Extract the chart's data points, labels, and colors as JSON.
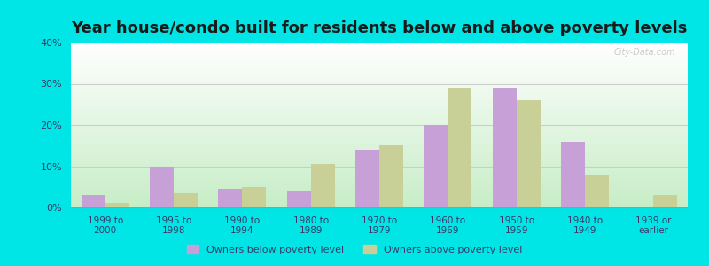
{
  "title": "Year house/condo built for residents below and above poverty levels",
  "categories": [
    "1999 to\n2000",
    "1995 to\n1998",
    "1990 to\n1994",
    "1980 to\n1989",
    "1970 to\n1979",
    "1960 to\n1969",
    "1950 to\n1959",
    "1940 to\n1949",
    "1939 or\nearlier"
  ],
  "below_poverty": [
    3.0,
    10.0,
    4.5,
    4.0,
    14.0,
    20.0,
    29.0,
    16.0,
    0.0
  ],
  "above_poverty": [
    1.0,
    3.5,
    5.0,
    10.5,
    15.0,
    29.0,
    26.0,
    8.0,
    3.0
  ],
  "below_color": "#c8a0d8",
  "above_color": "#c8d098",
  "ylim": [
    0,
    40
  ],
  "yticks": [
    0,
    10,
    20,
    30,
    40
  ],
  "ytick_labels": [
    "0%",
    "10%",
    "20%",
    "30%",
    "40%"
  ],
  "outer_bg": "#00e5e5",
  "legend_below_label": "Owners below poverty level",
  "legend_above_label": "Owners above poverty level",
  "title_fontsize": 13,
  "bar_width": 0.35,
  "grid_color": "#cccccc",
  "tick_label_color": "#3a3a6a",
  "watermark": "City-Data.com"
}
